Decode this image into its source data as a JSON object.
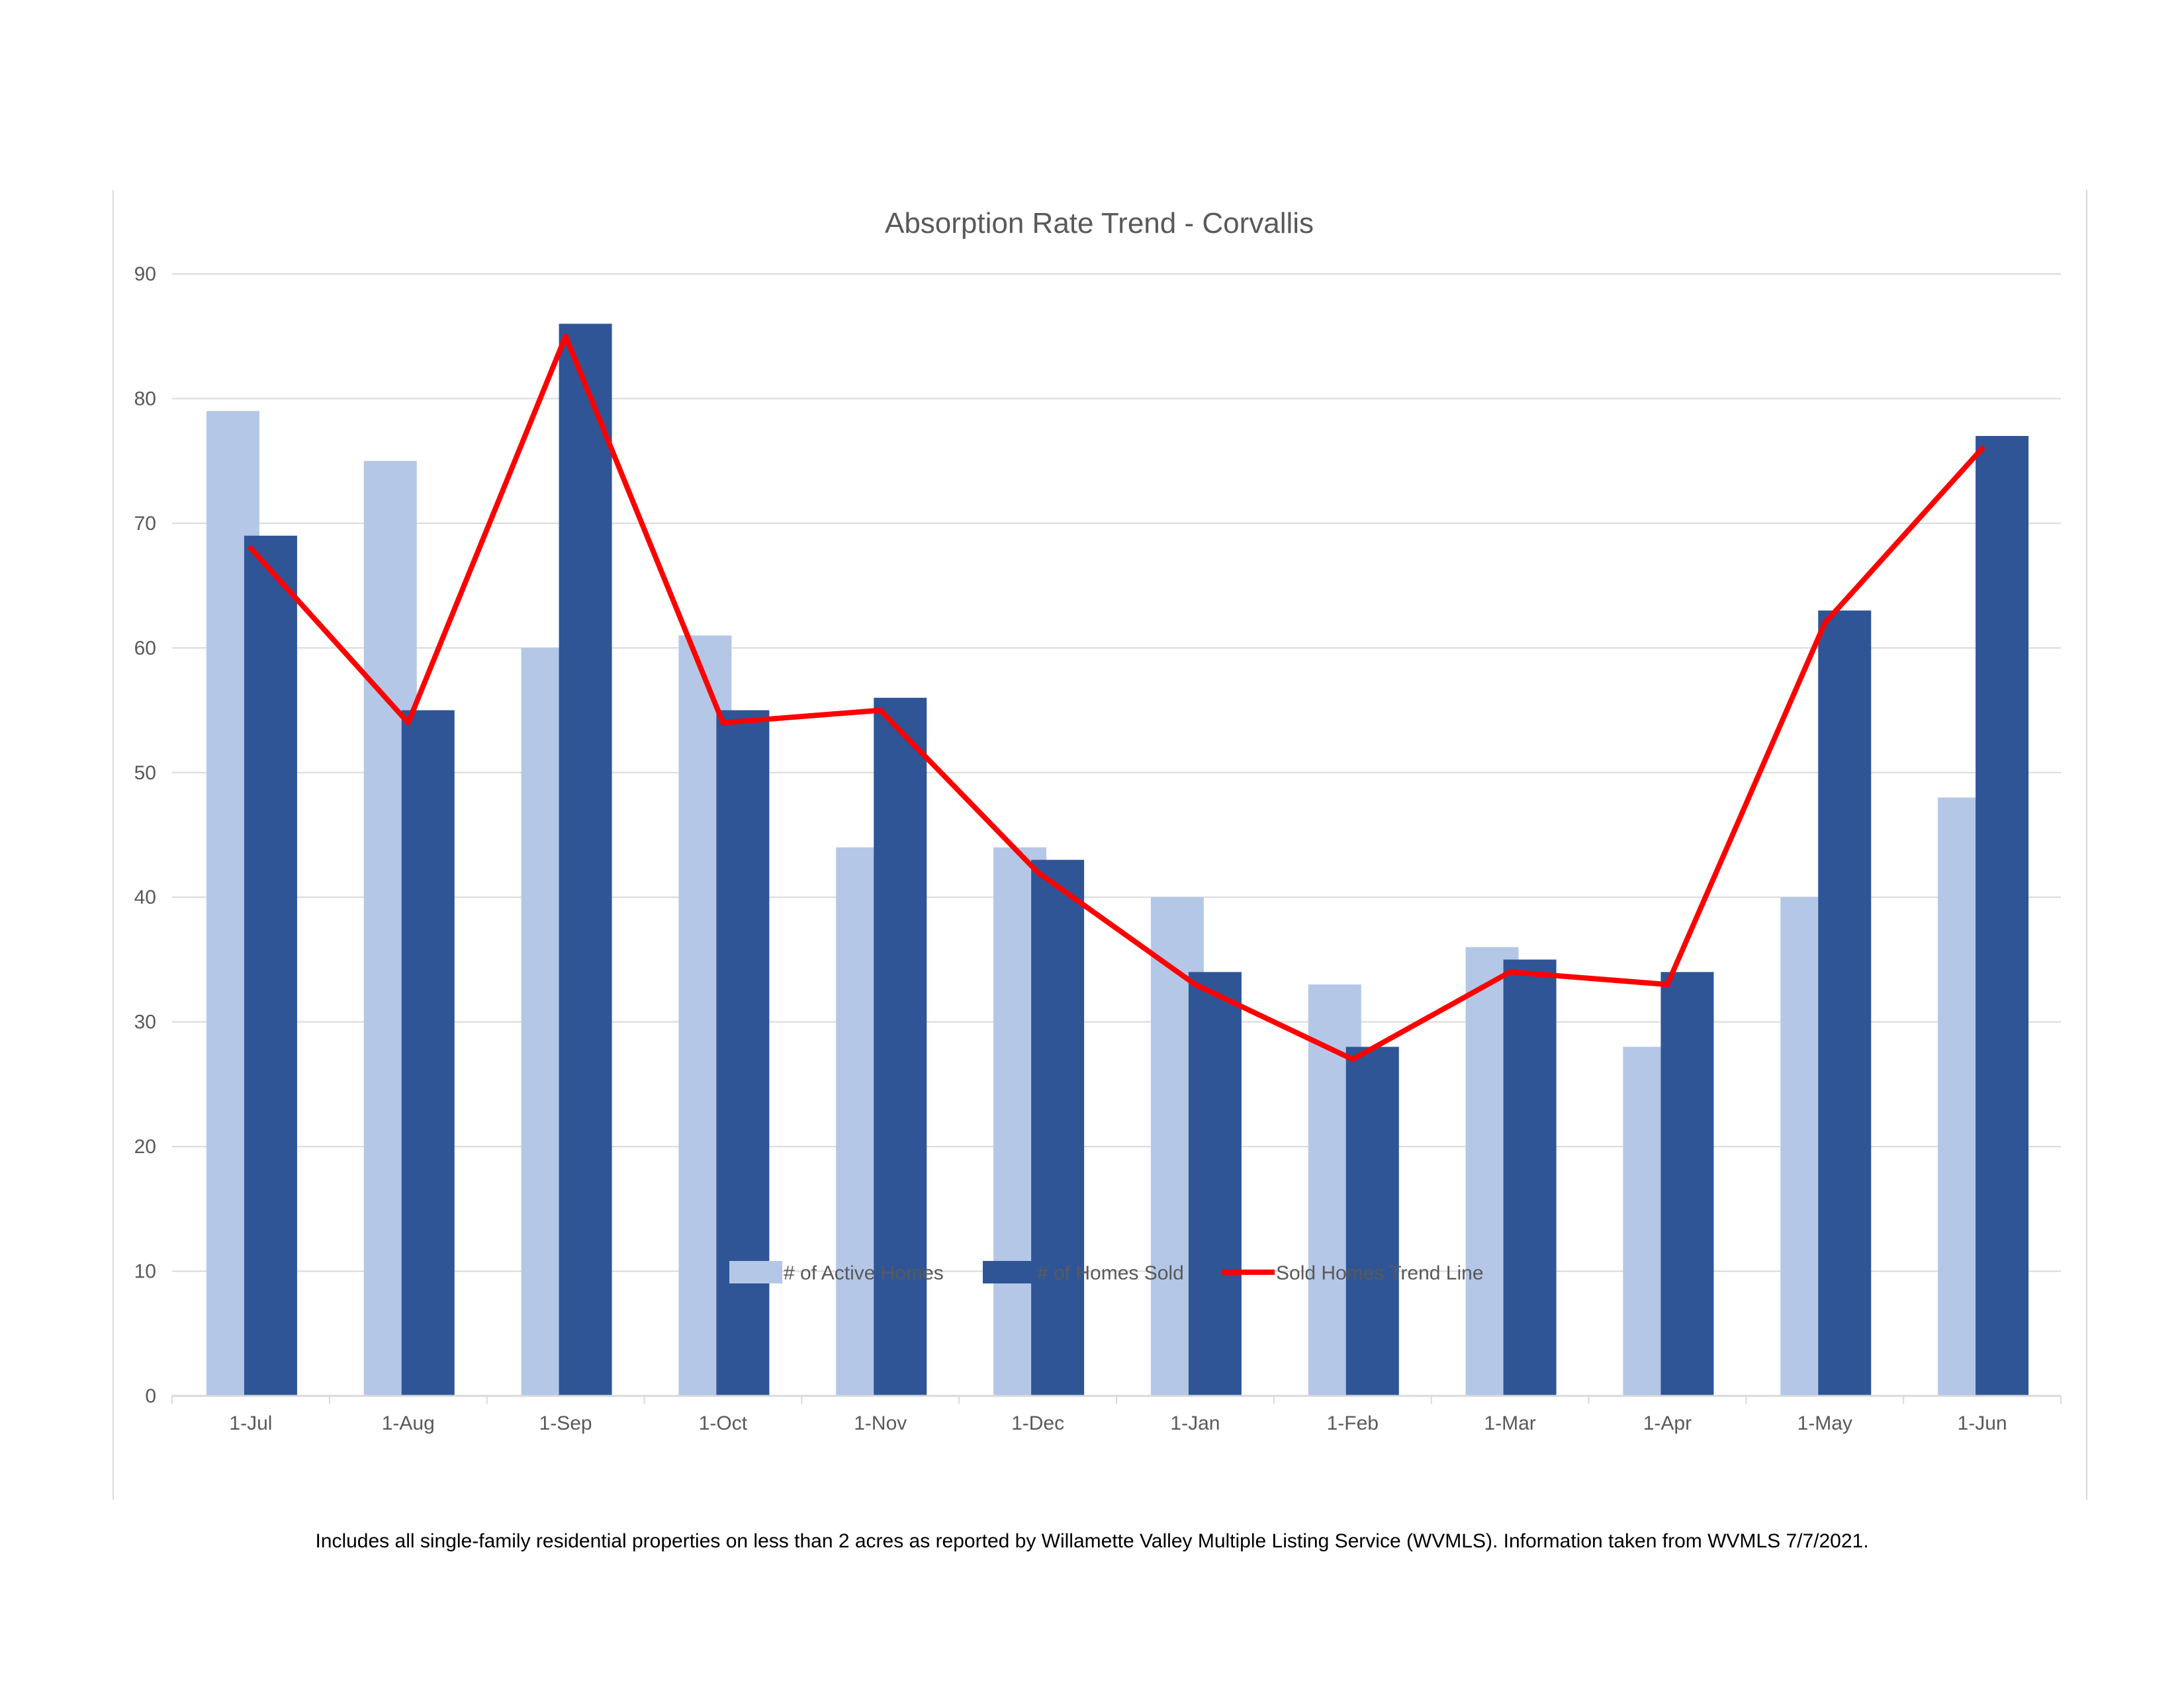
{
  "colors": {
    "active": "#b4c7e7",
    "sold": "#2f5597",
    "trend": "#ff0000",
    "grid": "#d9d9d9",
    "text": "#595959"
  },
  "chart_data": {
    "type": "bar",
    "title": "Absorption Rate Trend - Corvallis",
    "xlabel": "",
    "ylabel": "",
    "ylim": [
      0,
      90
    ],
    "yticks": [
      0,
      10,
      20,
      30,
      40,
      50,
      60,
      70,
      80,
      90
    ],
    "grid": true,
    "legend_position": "bottom",
    "categories": [
      "1-Jul",
      "1-Aug",
      "1-Sep",
      "1-Oct",
      "1-Nov",
      "1-Dec",
      "1-Jan",
      "1-Feb",
      "1-Mar",
      "1-Apr",
      "1-May",
      "1-Jun"
    ],
    "series": [
      {
        "name": "# of Active Homes",
        "kind": "bar",
        "color": "#b4c7e7",
        "values": [
          79,
          75,
          60,
          61,
          44,
          44,
          40,
          33,
          36,
          28,
          40,
          48
        ]
      },
      {
        "name": "# of Homes Sold",
        "kind": "bar",
        "color": "#2f5597",
        "values": [
          69,
          55,
          86,
          55,
          56,
          43,
          34,
          28,
          35,
          34,
          63,
          77
        ]
      },
      {
        "name": "Sold Homes Trend Line",
        "kind": "line",
        "color": "#ff0000",
        "values": [
          68,
          54,
          85,
          54,
          55,
          42,
          33,
          27,
          34,
          33,
          62,
          76
        ]
      }
    ]
  },
  "footnote": "Includes all single-family residential properties on less than 2 acres as reported by Willamette Valley Multiple Listing Service (WVMLS). Information taken from WVMLS 7/7/2021."
}
